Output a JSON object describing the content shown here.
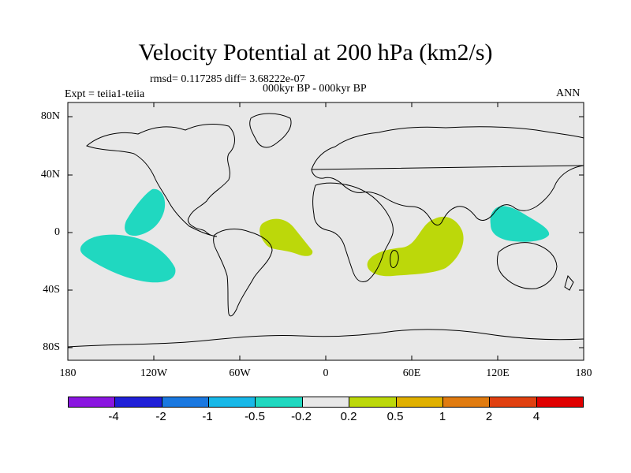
{
  "title": "Velocity Potential at 200 hPa (km2/s)",
  "stats_text": "rmsd= 0.117285  diff= 3.68222e-07",
  "period_text": "000kyr BP - 000kyr BP",
  "expt_text": "Expt = teiia1-teiia",
  "season_text": "ANN",
  "map": {
    "lat_ticks": [
      "80N",
      "40N",
      "0",
      "40S",
      "80S"
    ],
    "lon_ticks": [
      "180",
      "120W",
      "60W",
      "0",
      "60E",
      "120E",
      "180"
    ],
    "background_color": "#e8e8e8",
    "regions": [
      {
        "name": "north-pacific-negative-patch",
        "category": "-0.5",
        "color": "#20d8c0"
      },
      {
        "name": "south-pacific-negative-patch",
        "category": "-0.5",
        "color": "#20d8c0"
      },
      {
        "name": "maritime-continent-negative-patch",
        "category": "-0.5",
        "color": "#20d8c0"
      },
      {
        "name": "south-atlantic-positive-patch",
        "category": "0.5",
        "color": "#bcd80a"
      },
      {
        "name": "indian-ocean-positive-patch",
        "category": "0.5",
        "color": "#bcd80a"
      }
    ]
  },
  "colorbar": {
    "colors": [
      "#8a16e0",
      "#2020d8",
      "#1a78e0",
      "#18b8e8",
      "#20d8c0",
      "#e8e8e8",
      "#bcd80a",
      "#e0b000",
      "#e07b10",
      "#e04010",
      "#e00000"
    ],
    "labels": [
      "-4",
      "-2",
      "-1",
      "-0.5",
      "-0.2",
      "0.2",
      "0.5",
      "1",
      "2",
      "4"
    ]
  }
}
